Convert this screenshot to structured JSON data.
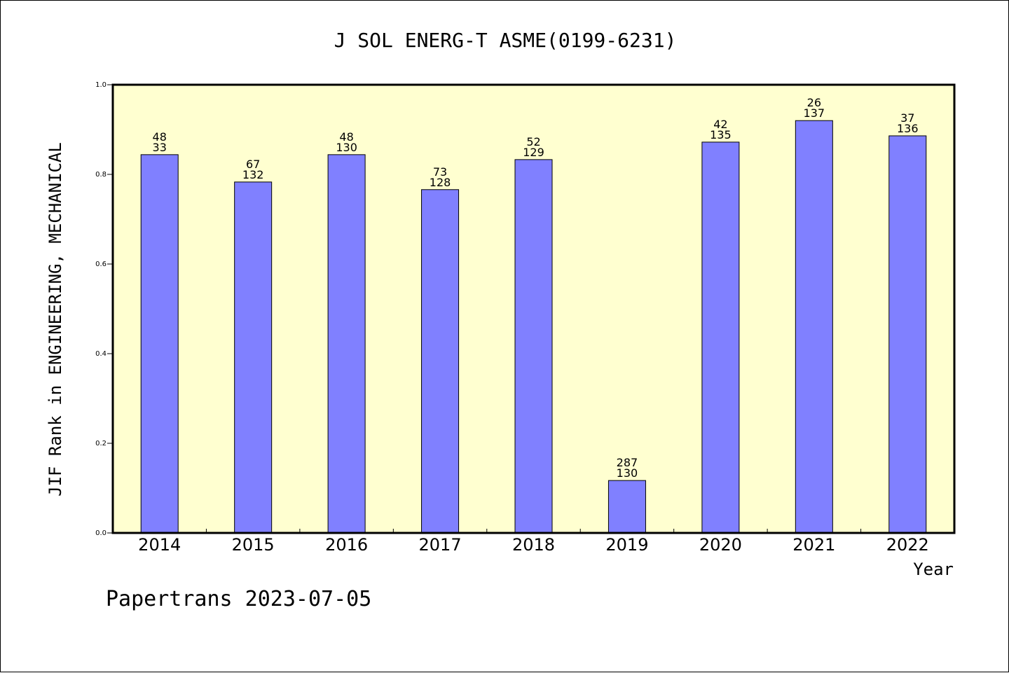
{
  "chart_data": {
    "type": "bar",
    "title": "J SOL ENERG-T ASME(0199-6231)",
    "xlabel": "Year",
    "ylabel": "JIF Rank in ENGINEERING, MECHANICAL",
    "ylim": [
      0,
      1.0
    ],
    "yticks": [
      "0.0",
      "0.2",
      "0.4",
      "0.6",
      "0.8",
      "1.0"
    ],
    "categories": [
      "2014",
      "2015",
      "2016",
      "2017",
      "2018",
      "2019",
      "2020",
      "2021",
      "2022"
    ],
    "values": [
      0.844,
      0.783,
      0.844,
      0.766,
      0.833,
      0.117,
      0.872,
      0.92,
      0.886
    ],
    "rank": [
      "48",
      "67",
      "48",
      "73",
      "52",
      "287",
      "42",
      "26",
      "37"
    ],
    "total": [
      "33",
      "132",
      "130",
      "128",
      "129",
      "130",
      "135",
      "137",
      "136"
    ],
    "bar_color": "#8080ff",
    "plot_background": "#ffffd0",
    "grid": false
  },
  "footer": "Papertrans 2023-07-05"
}
